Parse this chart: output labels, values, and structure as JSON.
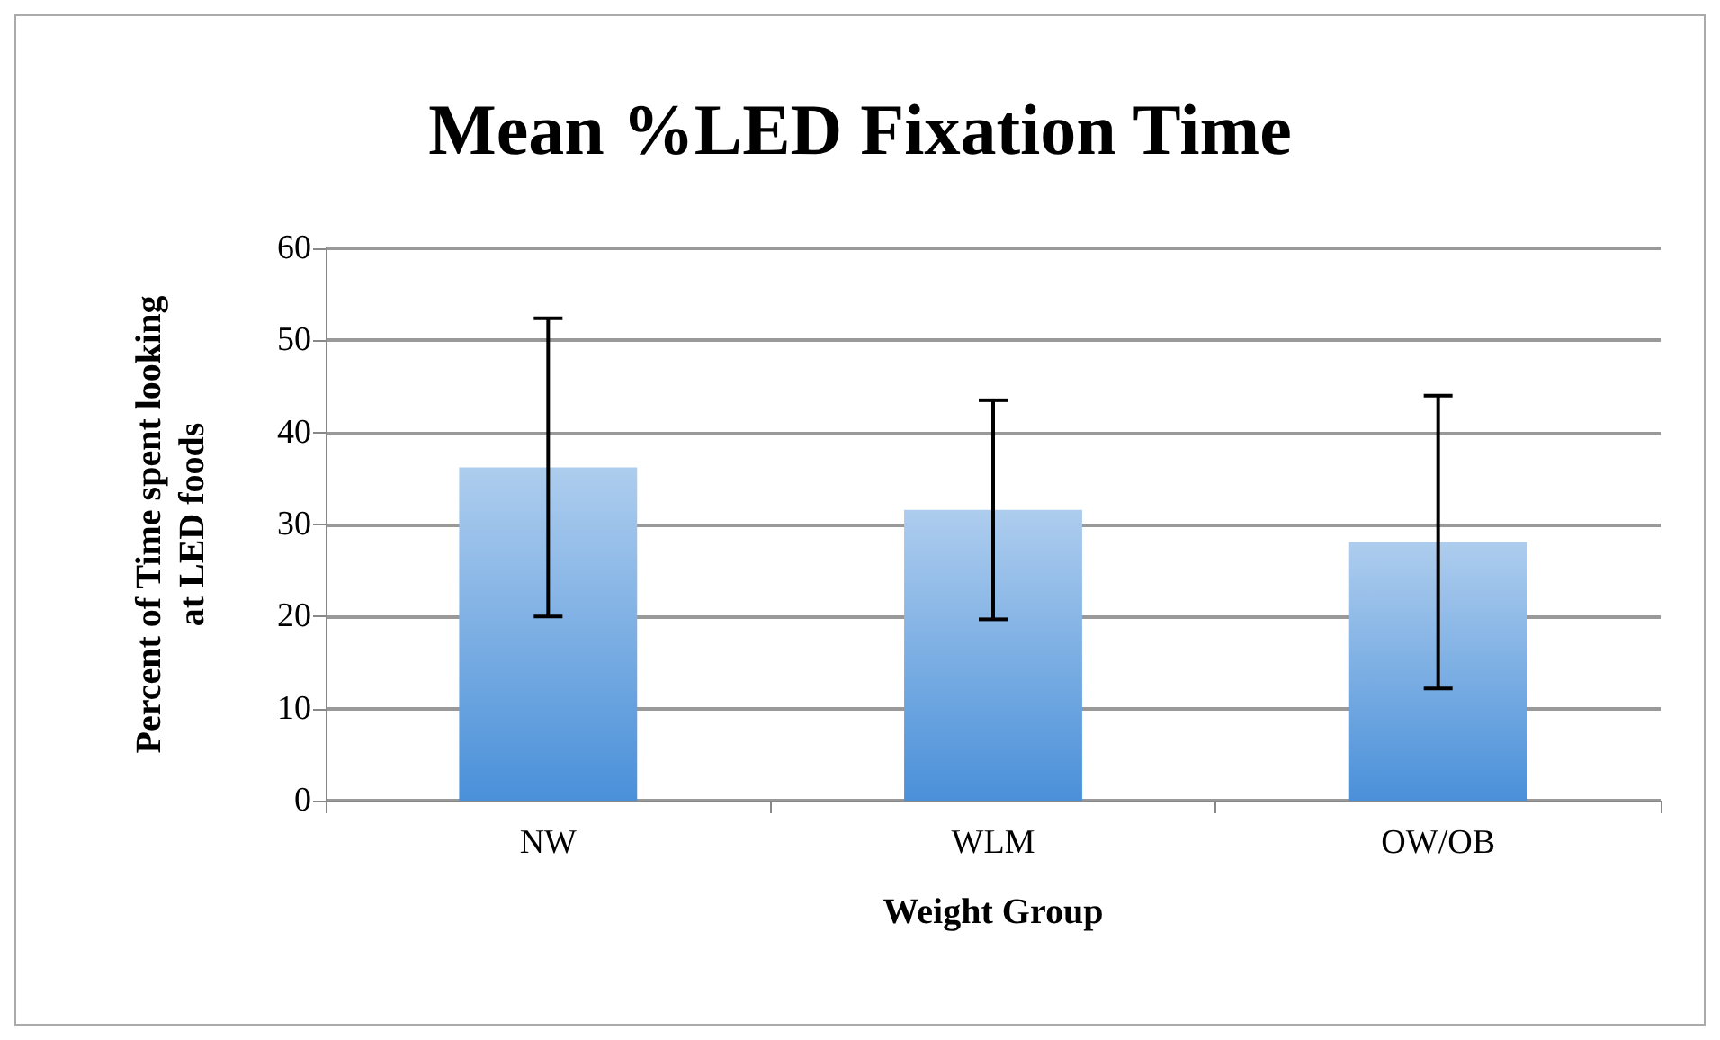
{
  "chart_data": {
    "type": "bar",
    "title": "Mean %LED Fixation Time",
    "xlabel": "Weight Group",
    "ylabel": "Percent of Time spent looking at LED foods",
    "categories": [
      "NW",
      "WLM",
      "OW/OB"
    ],
    "values": [
      36.2,
      31.6,
      28.1
    ],
    "errors": [
      16.2,
      11.9,
      15.9
    ],
    "color": "#4a90d9",
    "ylim": [
      0,
      60
    ],
    "yticks": [
      0,
      10,
      20,
      30,
      40,
      50,
      60
    ],
    "grid": "y"
  }
}
